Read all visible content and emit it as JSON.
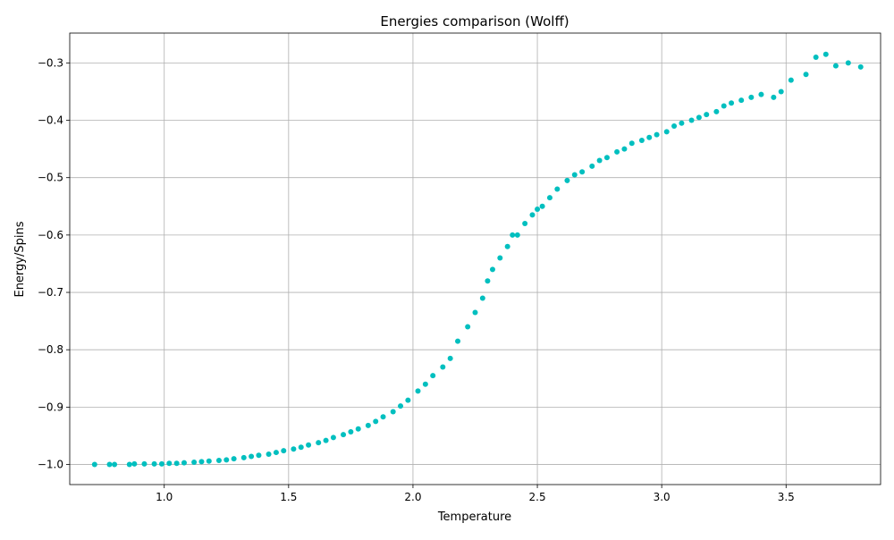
{
  "chart_data": {
    "type": "scatter",
    "title": "Energies comparison (Wolff)",
    "xlabel": "Temperature",
    "ylabel": "Energy/Spins",
    "xlim": [
      0.62,
      3.88
    ],
    "ylim": [
      -1.035,
      -0.248
    ],
    "xticks": [
      1.0,
      1.5,
      2.0,
      2.5,
      3.0,
      3.5
    ],
    "xtick_labels": [
      "1.0",
      "1.5",
      "2.0",
      "2.5",
      "3.0",
      "3.5"
    ],
    "yticks": [
      -1.0,
      -0.9,
      -0.8,
      -0.7,
      -0.6,
      -0.5,
      -0.4,
      -0.3
    ],
    "ytick_labels": [
      "−1.0",
      "−0.9",
      "−0.8",
      "−0.7",
      "−0.6",
      "−0.5",
      "−0.4",
      "−0.3"
    ],
    "grid": true,
    "color": "#00bfbf",
    "series": [
      {
        "points": [
          [
            0.72,
            -1.0
          ],
          [
            0.78,
            -1.0
          ],
          [
            0.8,
            -1.0
          ],
          [
            0.86,
            -1.0
          ],
          [
            0.88,
            -0.999
          ],
          [
            0.92,
            -0.999
          ],
          [
            0.96,
            -0.999
          ],
          [
            0.99,
            -0.999
          ],
          [
            1.02,
            -0.998
          ],
          [
            1.05,
            -0.998
          ],
          [
            1.08,
            -0.997
          ],
          [
            1.12,
            -0.996
          ],
          [
            1.15,
            -0.995
          ],
          [
            1.18,
            -0.994
          ],
          [
            1.22,
            -0.993
          ],
          [
            1.25,
            -0.992
          ],
          [
            1.28,
            -0.99
          ],
          [
            1.32,
            -0.988
          ],
          [
            1.35,
            -0.986
          ],
          [
            1.38,
            -0.984
          ],
          [
            1.42,
            -0.982
          ],
          [
            1.45,
            -0.979
          ],
          [
            1.48,
            -0.976
          ],
          [
            1.52,
            -0.973
          ],
          [
            1.55,
            -0.97
          ],
          [
            1.58,
            -0.966
          ],
          [
            1.62,
            -0.962
          ],
          [
            1.65,
            -0.958
          ],
          [
            1.68,
            -0.953
          ],
          [
            1.72,
            -0.948
          ],
          [
            1.75,
            -0.943
          ],
          [
            1.78,
            -0.938
          ],
          [
            1.82,
            -0.932
          ],
          [
            1.85,
            -0.925
          ],
          [
            1.88,
            -0.917
          ],
          [
            1.92,
            -0.908
          ],
          [
            1.95,
            -0.898
          ],
          [
            1.98,
            -0.888
          ],
          [
            2.02,
            -0.872
          ],
          [
            2.05,
            -0.86
          ],
          [
            2.08,
            -0.845
          ],
          [
            2.12,
            -0.83
          ],
          [
            2.15,
            -0.815
          ],
          [
            2.18,
            -0.785
          ],
          [
            2.22,
            -0.76
          ],
          [
            2.25,
            -0.735
          ],
          [
            2.28,
            -0.71
          ],
          [
            2.3,
            -0.68
          ],
          [
            2.32,
            -0.66
          ],
          [
            2.35,
            -0.64
          ],
          [
            2.38,
            -0.62
          ],
          [
            2.4,
            -0.6
          ],
          [
            2.42,
            -0.6
          ],
          [
            2.45,
            -0.58
          ],
          [
            2.48,
            -0.565
          ],
          [
            2.5,
            -0.555
          ],
          [
            2.52,
            -0.55
          ],
          [
            2.55,
            -0.535
          ],
          [
            2.58,
            -0.52
          ],
          [
            2.62,
            -0.505
          ],
          [
            2.65,
            -0.495
          ],
          [
            2.68,
            -0.49
          ],
          [
            2.72,
            -0.48
          ],
          [
            2.75,
            -0.47
          ],
          [
            2.78,
            -0.465
          ],
          [
            2.82,
            -0.455
          ],
          [
            2.85,
            -0.45
          ],
          [
            2.88,
            -0.44
          ],
          [
            2.92,
            -0.435
          ],
          [
            2.95,
            -0.43
          ],
          [
            2.98,
            -0.425
          ],
          [
            3.02,
            -0.42
          ],
          [
            3.05,
            -0.41
          ],
          [
            3.08,
            -0.405
          ],
          [
            3.12,
            -0.4
          ],
          [
            3.15,
            -0.395
          ],
          [
            3.18,
            -0.39
          ],
          [
            3.22,
            -0.385
          ],
          [
            3.25,
            -0.375
          ],
          [
            3.28,
            -0.37
          ],
          [
            3.32,
            -0.365
          ],
          [
            3.36,
            -0.36
          ],
          [
            3.4,
            -0.355
          ],
          [
            3.45,
            -0.36
          ],
          [
            3.48,
            -0.35
          ],
          [
            3.52,
            -0.33
          ],
          [
            3.58,
            -0.32
          ],
          [
            3.62,
            -0.29
          ],
          [
            3.66,
            -0.285
          ],
          [
            3.7,
            -0.305
          ],
          [
            3.75,
            -0.3
          ],
          [
            3.8,
            -0.307
          ]
        ]
      }
    ]
  }
}
